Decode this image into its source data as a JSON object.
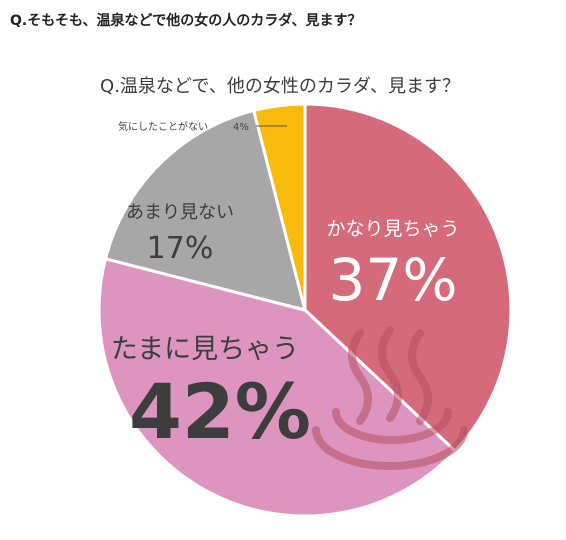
{
  "page": {
    "heading": "Q.そもそも、温泉などで他の女の人のカラダ、見ます？"
  },
  "chart_data": {
    "type": "pie",
    "title": "Q.温泉などで、他の女性のカラダ、見ます？",
    "start": "12 o'clock, clockwise",
    "slices": [
      {
        "label": "かなり見ちゃう",
        "value": 37,
        "value_text": "37%",
        "color": "#d46a7a"
      },
      {
        "label": "たまに見ちゃう",
        "value": 42,
        "value_text": "42%",
        "color": "#dd95c0"
      },
      {
        "label": "あまり見ない",
        "value": 17,
        "value_text": "17%",
        "color": "#a7a7a7"
      },
      {
        "label": "気にしたことがない",
        "value": 4,
        "value_text": "4%",
        "color": "#f9bc0c"
      }
    ],
    "decoration": {
      "icon": "hot-spring-icon"
    },
    "colors": {
      "label_dark": "#3d3d3d",
      "wedge_separator": "#ffffff",
      "leader_line": "#555555"
    }
  }
}
